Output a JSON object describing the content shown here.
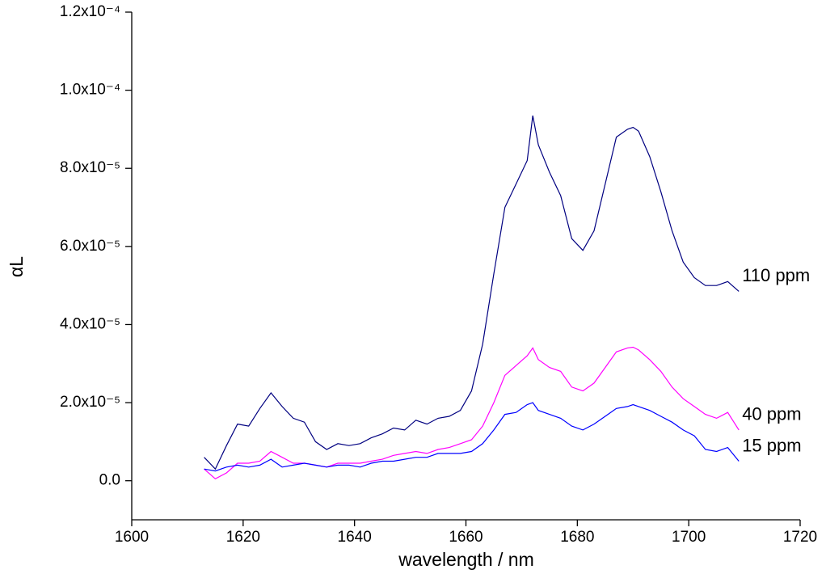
{
  "chart_data": {
    "type": "line",
    "xlabel": "wavelength / nm",
    "ylabel": "αL",
    "x": [
      1613,
      1615,
      1617,
      1619,
      1621,
      1623,
      1625,
      1627,
      1629,
      1631,
      1633,
      1635,
      1637,
      1639,
      1641,
      1643,
      1645,
      1647,
      1649,
      1651,
      1653,
      1655,
      1657,
      1659,
      1661,
      1663,
      1665,
      1667,
      1669,
      1671,
      1672,
      1673,
      1675,
      1677,
      1679,
      1681,
      1683,
      1685,
      1687,
      1689,
      1690,
      1691,
      1693,
      1695,
      1697,
      1699,
      1701,
      1703,
      1705,
      1707,
      1709
    ],
    "series": [
      {
        "name": "110 ppm",
        "color": "#000080",
        "values": [
          6e-06,
          3e-06,
          9e-06,
          1.45e-05,
          1.4e-05,
          1.85e-05,
          2.25e-05,
          1.9e-05,
          1.6e-05,
          1.5e-05,
          1e-05,
          8e-06,
          9.5e-06,
          9e-06,
          9.5e-06,
          1.1e-05,
          1.2e-05,
          1.35e-05,
          1.3e-05,
          1.55e-05,
          1.45e-05,
          1.6e-05,
          1.65e-05,
          1.8e-05,
          2.3e-05,
          3.5e-05,
          5.3e-05,
          7e-05,
          7.6e-05,
          8.2e-05,
          9.35e-05,
          8.6e-05,
          7.9e-05,
          7.3e-05,
          6.2e-05,
          5.9e-05,
          6.4e-05,
          7.6e-05,
          8.8e-05,
          9e-05,
          9.05e-05,
          8.95e-05,
          8.3e-05,
          7.4e-05,
          6.4e-05,
          5.6e-05,
          5.2e-05,
          5e-05,
          5e-05,
          5.1e-05,
          4.85e-05
        ]
      },
      {
        "name": "40 ppm",
        "color": "#ff00ff",
        "values": [
          3e-06,
          5e-07,
          2e-06,
          4.5e-06,
          4.5e-06,
          5e-06,
          7.5e-06,
          6e-06,
          4.5e-06,
          4.5e-06,
          4e-06,
          3.5e-06,
          4.5e-06,
          4.5e-06,
          4.5e-06,
          5e-06,
          5.5e-06,
          6.5e-06,
          7e-06,
          7.5e-06,
          7e-06,
          8e-06,
          8.5e-06,
          9.5e-06,
          1.05e-05,
          1.4e-05,
          2e-05,
          2.7e-05,
          2.95e-05,
          3.2e-05,
          3.4e-05,
          3.1e-05,
          2.9e-05,
          2.8e-05,
          2.4e-05,
          2.3e-05,
          2.5e-05,
          2.9e-05,
          3.3e-05,
          3.4e-05,
          3.42e-05,
          3.35e-05,
          3.1e-05,
          2.8e-05,
          2.4e-05,
          2.1e-05,
          1.9e-05,
          1.7e-05,
          1.6e-05,
          1.75e-05,
          1.3e-05
        ]
      },
      {
        "name": "15 ppm",
        "color": "#0000ff",
        "values": [
          3e-06,
          2.5e-06,
          3.5e-06,
          4e-06,
          3.5e-06,
          4e-06,
          5.5e-06,
          3.5e-06,
          4e-06,
          4.5e-06,
          4e-06,
          3.5e-06,
          4e-06,
          4e-06,
          3.5e-06,
          4.5e-06,
          5e-06,
          5e-06,
          5.5e-06,
          6e-06,
          6e-06,
          7e-06,
          7e-06,
          7e-06,
          7.5e-06,
          9.5e-06,
          1.3e-05,
          1.7e-05,
          1.75e-05,
          1.95e-05,
          2e-05,
          1.8e-05,
          1.7e-05,
          1.6e-05,
          1.4e-05,
          1.3e-05,
          1.45e-05,
          1.65e-05,
          1.85e-05,
          1.9e-05,
          1.95e-05,
          1.9e-05,
          1.8e-05,
          1.65e-05,
          1.5e-05,
          1.3e-05,
          1.15e-05,
          8e-06,
          7.5e-06,
          8.5e-06,
          5e-06
        ]
      }
    ],
    "xlim": [
      1600,
      1720
    ],
    "xticks": [
      1600,
      1620,
      1640,
      1660,
      1680,
      1700,
      1720
    ],
    "ylim": [
      -1e-05,
      0.00012
    ],
    "yticks": [
      {
        "value": 0,
        "label": "0.0"
      },
      {
        "value": 2e-05,
        "label": "2.0x10⁻⁵"
      },
      {
        "value": 4e-05,
        "label": "4.0x10⁻⁵"
      },
      {
        "value": 6e-05,
        "label": "6.0x10⁻⁵"
      },
      {
        "value": 8e-05,
        "label": "8.0x10⁻⁵"
      },
      {
        "value": 0.0001,
        "label": "1.0x10⁻⁴"
      },
      {
        "value": 0.00012,
        "label": "1.2x10⁻⁴"
      }
    ],
    "legend": "line-end",
    "grid": false
  }
}
